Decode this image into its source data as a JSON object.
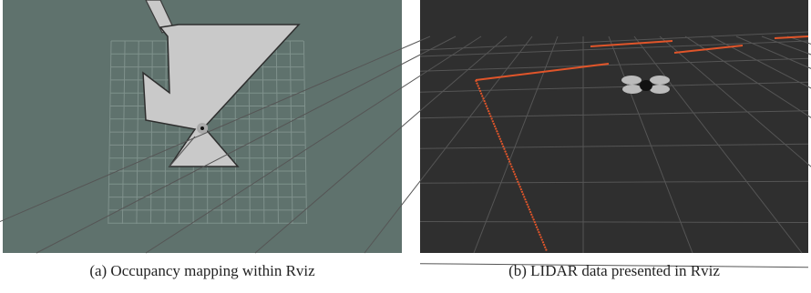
{
  "figure": {
    "panels": [
      {
        "caption": "(a) Occupancy mapping within Rviz"
      },
      {
        "caption": "(b) LIDAR data presented in Rviz"
      }
    ]
  }
}
